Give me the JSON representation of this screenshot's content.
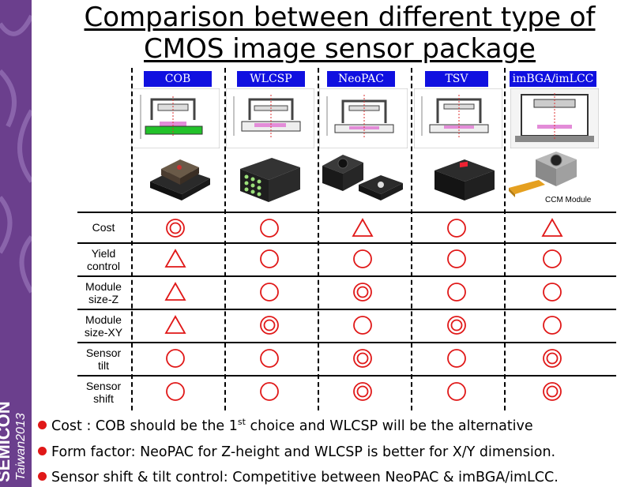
{
  "title": {
    "line1": "Comparison between different type of",
    "line2": "CMOS image sensor package"
  },
  "branding": {
    "main": "SEMICON",
    "sub": "Taiwan2013"
  },
  "columns": [
    "COB",
    "WLCSP",
    "NeoPAC",
    "TSV",
    "imBGA/imLCC"
  ],
  "photo_caption": "CCM Module",
  "rows": [
    {
      "label1": "Cost",
      "label2": "",
      "ratings": [
        "double-circle",
        "circle",
        "triangle",
        "circle",
        "triangle"
      ]
    },
    {
      "label1": "Yield",
      "label2": "control",
      "ratings": [
        "triangle",
        "circle",
        "circle",
        "circle",
        "circle"
      ]
    },
    {
      "label1": "Module",
      "label2": "size-Z",
      "ratings": [
        "triangle",
        "circle",
        "double-circle",
        "circle",
        "circle"
      ]
    },
    {
      "label1": "Module",
      "label2": "size-XY",
      "ratings": [
        "triangle",
        "double-circle",
        "circle",
        "double-circle",
        "circle"
      ]
    },
    {
      "label1": "Sensor",
      "label2": "tilt",
      "ratings": [
        "circle",
        "circle",
        "double-circle",
        "circle",
        "double-circle"
      ]
    },
    {
      "label1": "Sensor",
      "label2": "shift",
      "ratings": [
        "circle",
        "circle",
        "double-circle",
        "circle",
        "double-circle"
      ]
    }
  ],
  "bullets": [
    {
      "pre": "Cost : COB should be the 1",
      "sup": "st",
      "post": " choice and WLCSP will be the alternative"
    },
    {
      "pre": "Form factor: NeoPAC for Z-height and WLCSP is better for X/Y dimension.",
      "sup": "",
      "post": ""
    },
    {
      "pre": "Sensor shift & tilt control: Competitive between NeoPAC & imBGA/imLCC.",
      "sup": "",
      "post": ""
    }
  ],
  "colors": {
    "symbol": "#e01818",
    "label_bg": "#1010e0",
    "band": "#6b3f8d",
    "bullet_dot": "#e01818"
  }
}
